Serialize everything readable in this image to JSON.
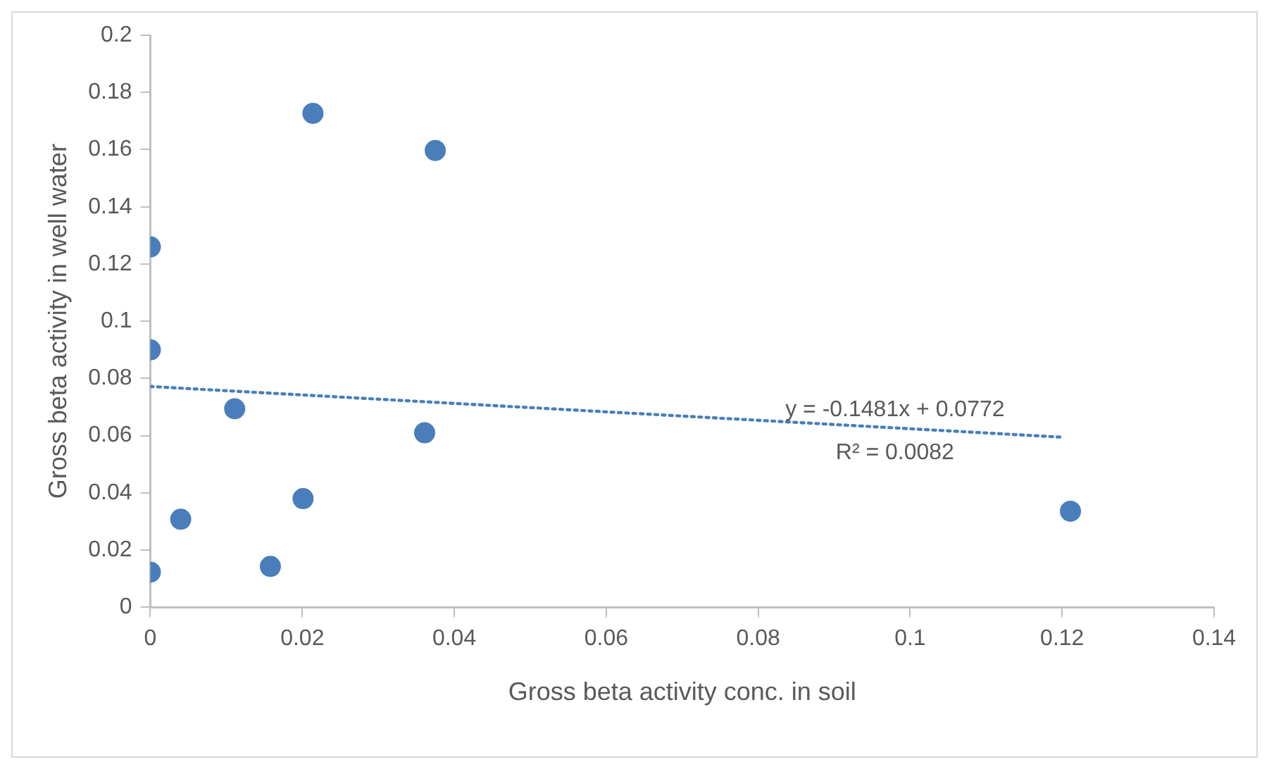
{
  "chart_data": {
    "type": "scatter",
    "xlabel": "Gross beta activity conc. in soil",
    "ylabel": "Gross beta activity in well water",
    "xlim": [
      0,
      0.14
    ],
    "xticks": [
      0,
      0.02,
      0.04,
      0.06,
      0.08,
      0.1,
      0.12,
      0.14
    ],
    "ylim": [
      0,
      0.2
    ],
    "yticks": [
      0,
      0.02,
      0.04,
      0.06,
      0.08,
      0.1,
      0.12,
      0.14,
      0.16,
      0.18,
      0.2
    ],
    "grid": false,
    "legend": false,
    "marker": "circle",
    "series": [
      {
        "color": "#4a7ebb",
        "x": [
          0,
          0,
          0,
          0.004,
          0.0111,
          0.0158,
          0.0201,
          0.0214,
          0.0361,
          0.0375,
          0.1211
        ],
        "values": [
          0.126,
          0.09,
          0.0123,
          0.0308,
          0.0694,
          0.0143,
          0.038,
          0.1727,
          0.061,
          0.1597,
          0.0336
        ]
      },
      {
        "type": "line",
        "color": "#4a7ebb",
        "line_style": "dotted",
        "marker": "none",
        "x": [
          0,
          0.1198
        ],
        "values": [
          0.0772,
          0.0595
        ]
      }
    ],
    "annotations": [
      "y = -0.1481x + 0.0772",
      "R² = 0.0082"
    ]
  }
}
